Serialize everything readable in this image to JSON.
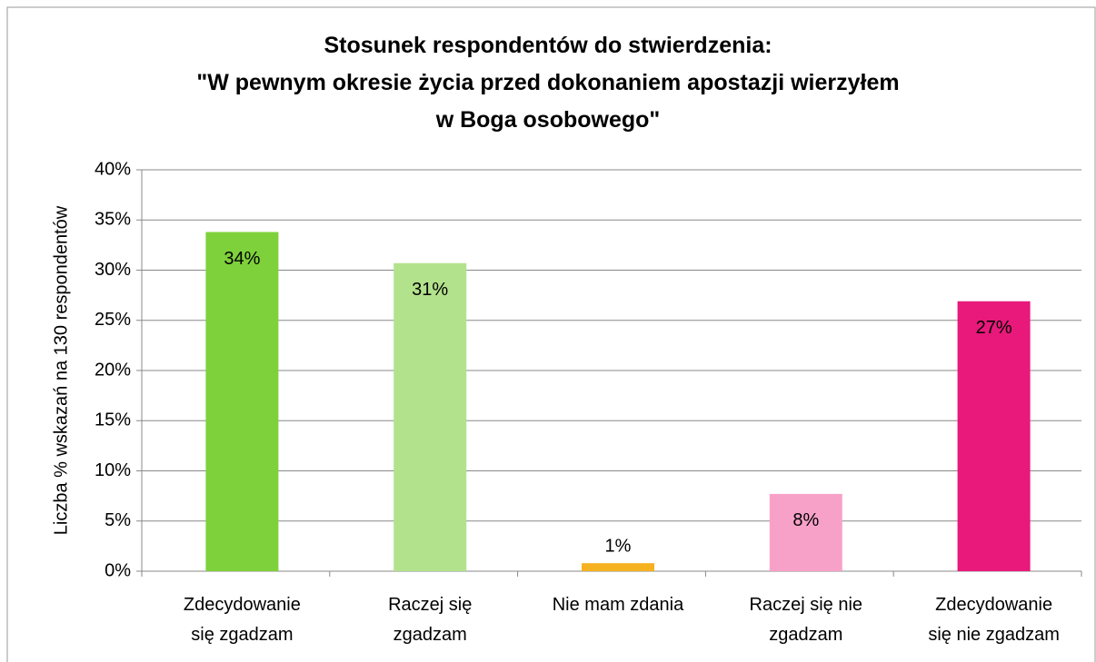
{
  "chart_data": {
    "type": "bar",
    "title": "Stosunek respondentów do stwierdzenia:\n\"W pewnym okresie życia przed dokonaniem apostazji wierzyłem\nw Boga osobowego\"",
    "y_label": "Liczba % wskazań na 130 respondentów",
    "categories": [
      "Zdecydowanie\nsię zgadzam",
      "Raczej się\nzgadzam",
      "Nie mam zdania",
      "Raczej się nie\nzgadzam",
      "Zdecydowanie\nsię nie zgadzam"
    ],
    "values": [
      33.8,
      30.7,
      0.8,
      7.7,
      26.9
    ],
    "value_labels": [
      "34%",
      "31%",
      "1%",
      "8%",
      "27%"
    ],
    "colors": [
      "#7fd13b",
      "#b3e28c",
      "#f5b120",
      "#f7a1c9",
      "#e8197b"
    ],
    "ylim": [
      0,
      40
    ],
    "yticks": [
      {
        "value": 0,
        "label": "0%"
      },
      {
        "value": 5,
        "label": "5%"
      },
      {
        "value": 10,
        "label": "10%"
      },
      {
        "value": 15,
        "label": "15%"
      },
      {
        "value": 20,
        "label": "20%"
      },
      {
        "value": 25,
        "label": "25%"
      },
      {
        "value": 30,
        "label": "30%"
      },
      {
        "value": 35,
        "label": "35%"
      },
      {
        "value": 40,
        "label": "40%"
      }
    ],
    "grid": true
  }
}
